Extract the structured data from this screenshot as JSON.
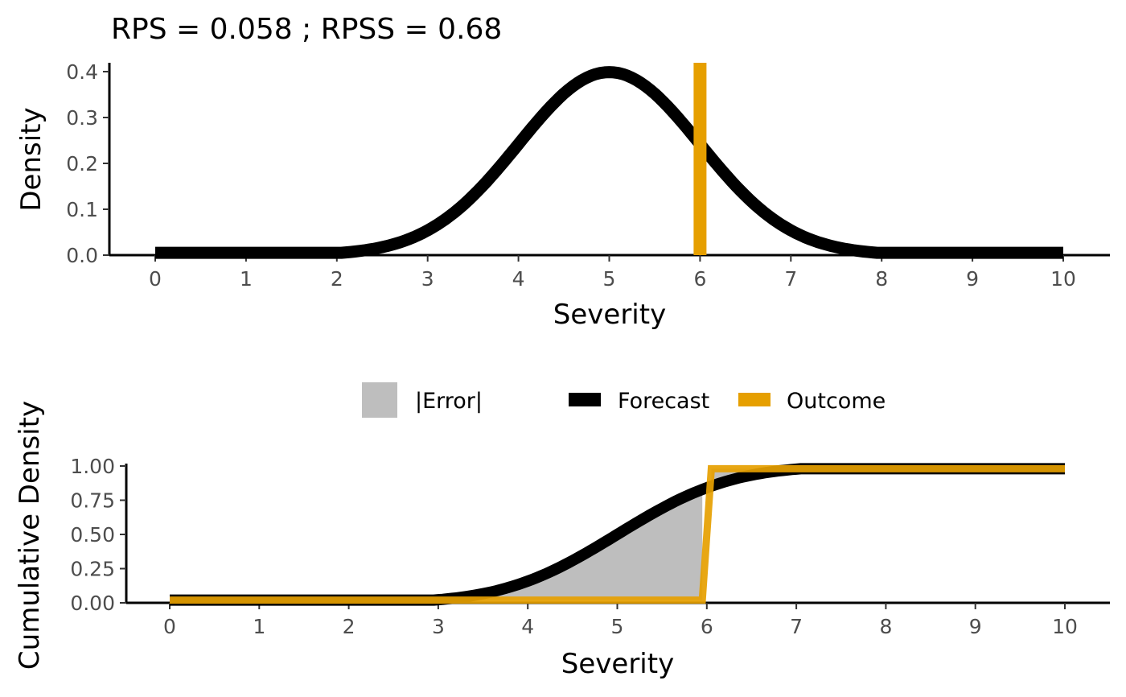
{
  "chart_data": [
    {
      "type": "line",
      "title": "RPS = 0.058 ; RPSS = 0.68",
      "xlabel": "Severity",
      "ylabel": "Density",
      "xlim": [
        0,
        10
      ],
      "ylim": [
        0,
        0.4
      ],
      "x_ticks": [
        "0",
        "1",
        "2",
        "3",
        "4",
        "5",
        "6",
        "7",
        "8",
        "9",
        "10"
      ],
      "y_ticks": [
        "0.0",
        "0.1",
        "0.2",
        "0.3",
        "0.4"
      ],
      "series": [
        {
          "name": "Forecast",
          "x": [
            0,
            0.5,
            1,
            1.5,
            2,
            2.5,
            3,
            3.5,
            4,
            4.5,
            5,
            5.5,
            6,
            6.5,
            7,
            7.5,
            8,
            8.5,
            9,
            9.5,
            10
          ],
          "values": [
            0.005,
            0.005,
            0.006,
            0.008,
            0.012,
            0.019,
            0.054,
            0.13,
            0.242,
            0.352,
            0.399,
            0.352,
            0.242,
            0.13,
            0.054,
            0.019,
            0.012,
            0.008,
            0.006,
            0.005,
            0.005
          ]
        },
        {
          "name": "Outcome",
          "x": [
            6,
            6
          ],
          "values": [
            0,
            0.42
          ]
        }
      ],
      "grid": false
    },
    {
      "type": "area",
      "xlabel": "Severity",
      "ylabel": "Cumulative Density",
      "xlim": [
        0,
        10
      ],
      "ylim": [
        0,
        1
      ],
      "x_ticks": [
        "0",
        "1",
        "2",
        "3",
        "4",
        "5",
        "6",
        "7",
        "8",
        "9",
        "10"
      ],
      "y_ticks": [
        "0.00",
        "0.25",
        "0.50",
        "0.75",
        "1.00"
      ],
      "legend": {
        "position": "top",
        "entries": [
          {
            "label": "|Error|",
            "color": "#bebebe"
          },
          {
            "label": "Forecast",
            "color": "#000000"
          },
          {
            "label": "Outcome",
            "color": "#e69f00"
          }
        ]
      },
      "series": [
        {
          "name": "Forecast",
          "x": [
            0,
            1,
            2,
            3,
            3.3,
            3.6,
            4,
            4.3,
            4.6,
            5,
            5.3,
            5.6,
            6,
            6.3,
            6.6,
            7,
            7.5,
            8,
            9,
            10
          ],
          "values": [
            0.02,
            0.02,
            0.02,
            0.03,
            0.04,
            0.06,
            0.1,
            0.15,
            0.23,
            0.38,
            0.5,
            0.62,
            0.76,
            0.85,
            0.91,
            0.95,
            0.97,
            0.98,
            0.98,
            0.98
          ]
        },
        {
          "name": "Outcome",
          "x": [
            0,
            5.95,
            6.05,
            10
          ],
          "values": [
            0.02,
            0.02,
            0.98,
            0.98
          ]
        }
      ],
      "grid": false
    }
  ],
  "colors": {
    "forecast": "#000000",
    "outcome": "#e69f00",
    "error": "#bebebe",
    "ticks": "#4d4d4d"
  }
}
